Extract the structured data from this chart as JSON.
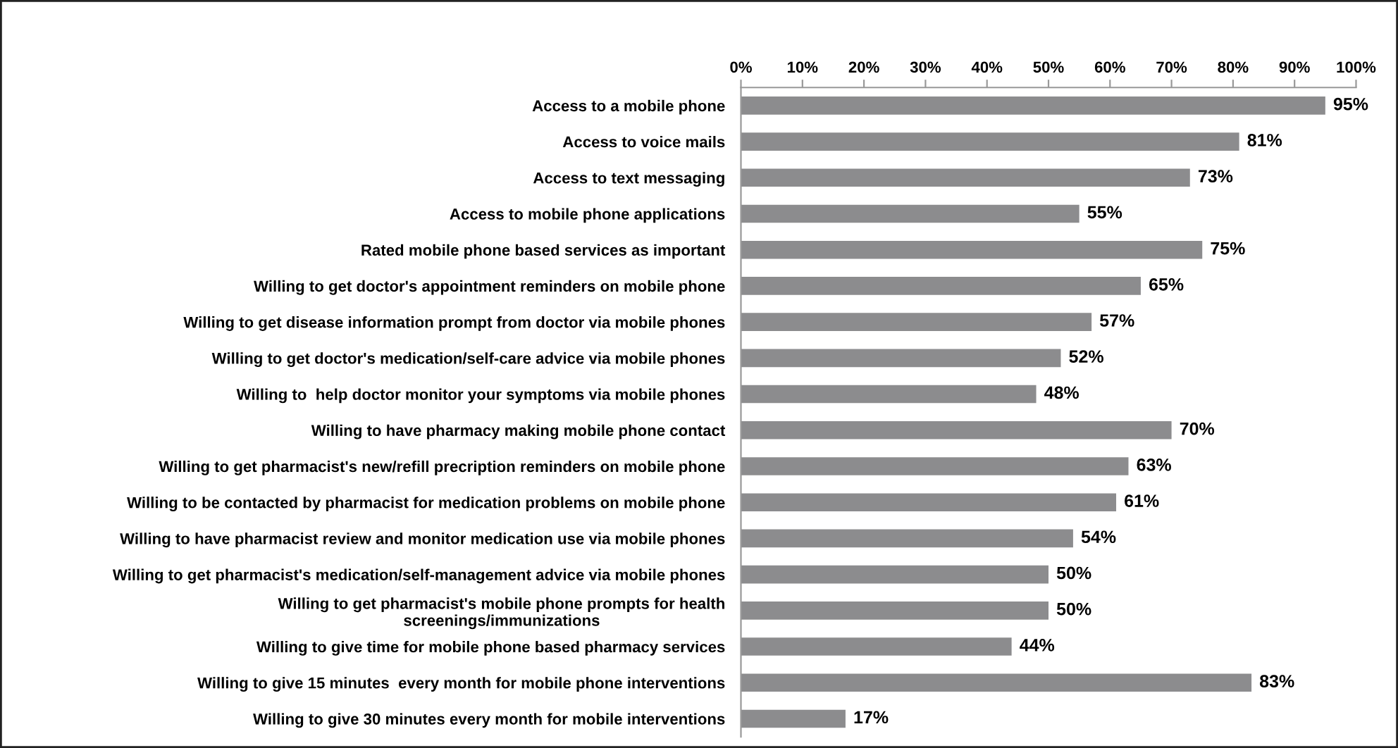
{
  "chart_data": {
    "type": "bar",
    "orientation": "horizontal",
    "categories": [
      "Access to a mobile phone",
      "Access to voice mails",
      "Access to text messaging",
      "Access to mobile phone applications",
      "Rated mobile phone based services as important",
      "Willing to get doctor's appointment reminders on mobile phone",
      "Willing to get disease information prompt from doctor via mobile phones",
      "Willing to get doctor's medication/self-care advice via mobile phones",
      "Willing to  help doctor monitor your symptoms via mobile phones",
      "Willing to have pharmacy making mobile phone contact",
      "Willing to get pharmacist's new/refill precription reminders on mobile phone",
      "Willing to be contacted by pharmacist for medication problems on mobile phone",
      "Willing to have pharmacist review and monitor medication use via mobile phones",
      "Willing to get pharmacist's medication/self-management advice via mobile phones",
      "Willing to get pharmacist's mobile phone prompts for health\nscreenings/immunizations",
      "Willing to give time for mobile phone based pharmacy services",
      "Willing to give 15 minutes  every month for mobile phone interventions",
      "Willing to give 30 minutes every month for mobile interventions"
    ],
    "values": [
      95,
      81,
      73,
      55,
      75,
      65,
      57,
      52,
      48,
      70,
      63,
      61,
      54,
      50,
      50,
      44,
      83,
      17
    ],
    "value_labels": [
      "95%",
      "81%",
      "73%",
      "55%",
      "75%",
      "65%",
      "57%",
      "52%",
      "48%",
      "70%",
      "63%",
      "61%",
      "54%",
      "50%",
      "50%",
      "44%",
      "83%",
      "17%"
    ],
    "color": "#8c8c8e",
    "xlim": [
      0,
      100
    ],
    "xticks": [
      {
        "value": 0,
        "label": "0%"
      },
      {
        "value": 10,
        "label": "10%"
      },
      {
        "value": 20,
        "label": "20%"
      },
      {
        "value": 30,
        "label": "30%"
      },
      {
        "value": 40,
        "label": "40%"
      },
      {
        "value": 50,
        "label": "50%"
      },
      {
        "value": 60,
        "label": "60%"
      },
      {
        "value": 70,
        "label": "70%"
      },
      {
        "value": 80,
        "label": "80%"
      },
      {
        "value": 90,
        "label": "90%"
      },
      {
        "value": 100,
        "label": "100%"
      }
    ],
    "grid": false,
    "legend": false
  }
}
